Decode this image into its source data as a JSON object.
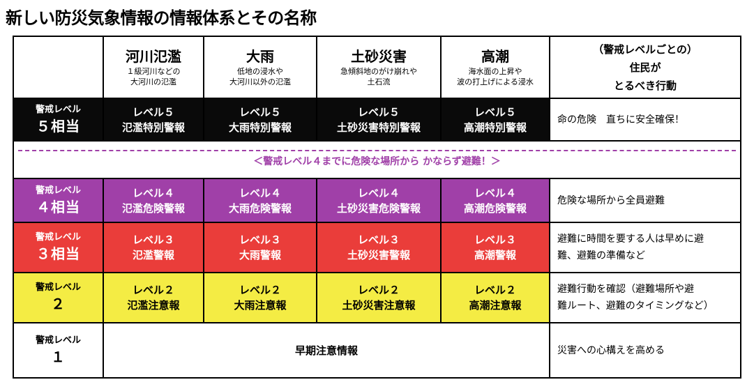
{
  "title": "新しい防災気象情報の情報体系とその名称",
  "header": {
    "hazards": [
      {
        "name": "河川氾濫",
        "sub1": "１級河川などの",
        "sub2": "大河川の氾濫"
      },
      {
        "name": "大雨",
        "sub1": "低地の浸水や",
        "sub2": "大河川以外の氾濫"
      },
      {
        "name": "土砂災害",
        "sub1": "急傾斜地のがけ崩れや",
        "sub2": "土石流"
      },
      {
        "name": "高潮",
        "sub1": "海水面の上昇や",
        "sub2": "波の打上げによる浸水"
      }
    ],
    "response_line1": "（警戒レベルごとの）",
    "response_line2": "住民が",
    "response_line3": "とるべき行動"
  },
  "band_text": "＜警戒レベル４までに危険な場所から かならず避難！＞",
  "levels": [
    {
      "label": "警戒レベル",
      "num": "５相当",
      "warnings": [
        {
          "l1": "レベル５",
          "l2": "氾濫特別警報"
        },
        {
          "l1": "レベル５",
          "l2": "大雨特別警報"
        },
        {
          "l1": "レベル５",
          "l2": "土砂災害特別警報"
        },
        {
          "l1": "レベル５",
          "l2": "高潮特別警報"
        }
      ],
      "action1": "命の危険　直ちに安全確保！",
      "action2": ""
    },
    {
      "label": "警戒レベル",
      "num": "４相当",
      "warnings": [
        {
          "l1": "レベル４",
          "l2": "氾濫危険警報"
        },
        {
          "l1": "レベル４",
          "l2": "大雨危険警報"
        },
        {
          "l1": "レベル４",
          "l2": "土砂災害危険警報"
        },
        {
          "l1": "レベル４",
          "l2": "高潮危険警報"
        }
      ],
      "action1": "危険な場所から全員避難",
      "action2": ""
    },
    {
      "label": "警戒レベル",
      "num": "３相当",
      "warnings": [
        {
          "l1": "レベル３",
          "l2": "氾濫警報"
        },
        {
          "l1": "レベル３",
          "l2": "大雨警報"
        },
        {
          "l1": "レベル３",
          "l2": "土砂災害警報"
        },
        {
          "l1": "レベル３",
          "l2": "高潮警報"
        }
      ],
      "action1": "避難に時間を要する人は早めに避",
      "action2": "難、避難の準備など"
    },
    {
      "label": "警戒レベル",
      "num": "２",
      "warnings": [
        {
          "l1": "レベル２",
          "l2": "氾濫注意報"
        },
        {
          "l1": "レベル２",
          "l2": "大雨注意報"
        },
        {
          "l1": "レベル２",
          "l2": "土砂災害注意報"
        },
        {
          "l1": "レベル２",
          "l2": "高潮注意報"
        }
      ],
      "action1": "避難行動を確認（避難場所や避",
      "action2": "難ルート、避難のタイミングなど）"
    },
    {
      "label": "警戒レベル",
      "num": "１",
      "span_info": "早期注意情報",
      "action1": "災害への心構えを高める",
      "action2": ""
    }
  ],
  "colors": {
    "level5": "#0a0a0a",
    "level4": "#a040a8",
    "level3": "#ea3d3a",
    "level2": "#f4ec44",
    "band": "#a040a8"
  }
}
